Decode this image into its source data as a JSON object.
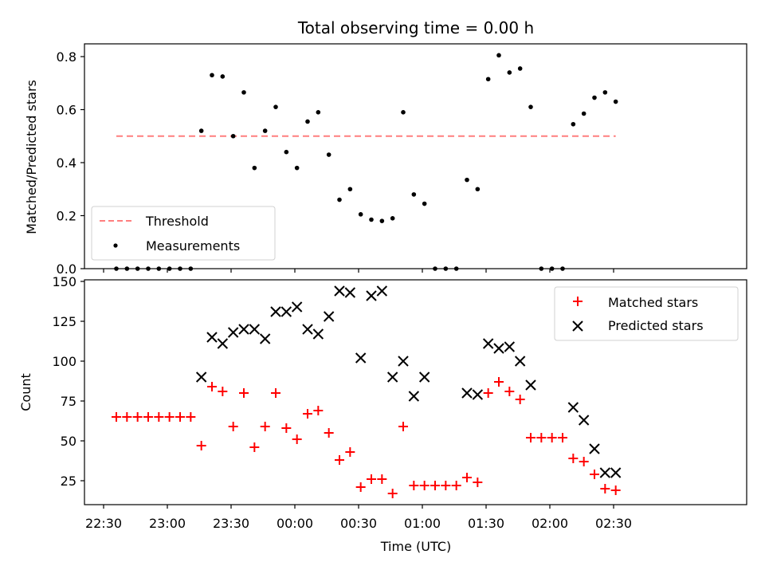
{
  "chart_data": [
    {
      "type": "scatter",
      "title": "Total observing time = 0.00 h",
      "xlabel": "",
      "ylabel": "Matched/Predicted stars",
      "ylim": [
        0.0,
        0.85
      ],
      "yticks": [
        "0.0",
        "0.2",
        "0.4",
        "0.6",
        "0.8"
      ],
      "threshold": {
        "name": "Threshold",
        "value": 0.5,
        "x_start": "22:36",
        "x_end": "02:31",
        "color": "#ff7f7f"
      },
      "series": [
        {
          "name": "Measurements",
          "color": "#000000",
          "x": [
            "22:36",
            "22:41",
            "22:46",
            "22:51",
            "22:56",
            "23:01",
            "23:06",
            "23:11",
            "23:16",
            "23:21",
            "23:26",
            "23:31",
            "23:36",
            "23:41",
            "23:46",
            "23:51",
            "23:56",
            "00:01",
            "00:06",
            "00:11",
            "00:16",
            "00:21",
            "00:26",
            "00:31",
            "00:36",
            "00:41",
            "00:46",
            "00:51",
            "00:56",
            "01:01",
            "01:06",
            "01:11",
            "01:16",
            "01:21",
            "01:26",
            "01:31",
            "01:36",
            "01:41",
            "01:46",
            "01:51",
            "01:56",
            "02:01",
            "02:06",
            "02:11",
            "02:16",
            "02:21",
            "02:26",
            "02:31"
          ],
          "y": [
            0,
            0,
            0,
            0,
            0,
            0,
            0,
            0,
            0.52,
            0.73,
            0.725,
            0.5,
            0.665,
            0.38,
            0.52,
            0.61,
            0.44,
            0.38,
            0.555,
            0.59,
            0.43,
            0.26,
            0.3,
            0.205,
            0.185,
            0.18,
            0.19,
            0.59,
            0.28,
            0.245,
            0,
            0,
            0,
            0.335,
            0.3,
            0.715,
            0.805,
            0.74,
            0.755,
            0.61,
            0,
            0,
            0,
            0.545,
            0.585,
            0.645,
            0.665,
            0.63
          ]
        }
      ],
      "legend": {
        "position": "lower-left",
        "entries": [
          "Threshold",
          "Measurements"
        ]
      }
    },
    {
      "type": "scatter",
      "title": "",
      "xlabel": "Time (UTC)",
      "ylabel": "Count",
      "ylim": [
        10,
        150
      ],
      "yticks": [
        "25",
        "50",
        "75",
        "100",
        "125",
        "150"
      ],
      "xticks": [
        "22:30",
        "23:00",
        "23:30",
        "00:00",
        "00:30",
        "01:00",
        "01:30",
        "02:00",
        "02:30"
      ],
      "series": [
        {
          "name": "Matched stars",
          "marker": "plus",
          "color": "#ff0000",
          "x": [
            "22:36",
            "22:41",
            "22:46",
            "22:51",
            "22:56",
            "23:01",
            "23:06",
            "23:11",
            "23:16",
            "23:21",
            "23:26",
            "23:31",
            "23:36",
            "23:41",
            "23:46",
            "23:51",
            "23:56",
            "00:01",
            "00:06",
            "00:11",
            "00:16",
            "00:21",
            "00:26",
            "00:31",
            "00:36",
            "00:41",
            "00:46",
            "00:51",
            "00:56",
            "01:01",
            "01:06",
            "01:11",
            "01:16",
            "01:21",
            "01:26",
            "01:31",
            "01:36",
            "01:41",
            "01:46",
            "01:51",
            "01:56",
            "02:01",
            "02:06",
            "02:11",
            "02:16",
            "02:21",
            "02:26",
            "02:31"
          ],
          "y": [
            65,
            65,
            65,
            65,
            65,
            65,
            65,
            65,
            47,
            84,
            81,
            59,
            80,
            46,
            59,
            80,
            58,
            51,
            67,
            69,
            55,
            38,
            43,
            21,
            26,
            26,
            17,
            59,
            22,
            22,
            22,
            22,
            22,
            27,
            24,
            80,
            87,
            81,
            76,
            52,
            52,
            52,
            52,
            39,
            37,
            29,
            20,
            19
          ]
        },
        {
          "name": "Predicted stars",
          "marker": "x",
          "color": "#000000",
          "x": [
            "23:16",
            "23:21",
            "23:26",
            "23:31",
            "23:36",
            "23:41",
            "23:46",
            "23:51",
            "23:56",
            "00:01",
            "00:06",
            "00:11",
            "00:16",
            "00:21",
            "00:26",
            "00:31",
            "00:36",
            "00:41",
            "00:46",
            "00:51",
            "00:56",
            "01:01",
            "01:21",
            "01:26",
            "01:31",
            "01:36",
            "01:41",
            "01:46",
            "01:51",
            "02:11",
            "02:16",
            "02:21",
            "02:26",
            "02:31"
          ],
          "y": [
            90,
            115,
            111,
            118,
            120,
            120,
            114,
            131,
            131,
            134,
            120,
            117,
            128,
            144,
            143,
            102,
            141,
            144,
            90,
            100,
            78,
            90,
            80,
            79,
            111,
            108,
            109,
            100,
            85,
            71,
            63,
            45,
            30,
            30
          ]
        }
      ],
      "legend": {
        "position": "upper-right",
        "entries": [
          "Matched stars",
          "Predicted stars"
        ]
      }
    }
  ]
}
